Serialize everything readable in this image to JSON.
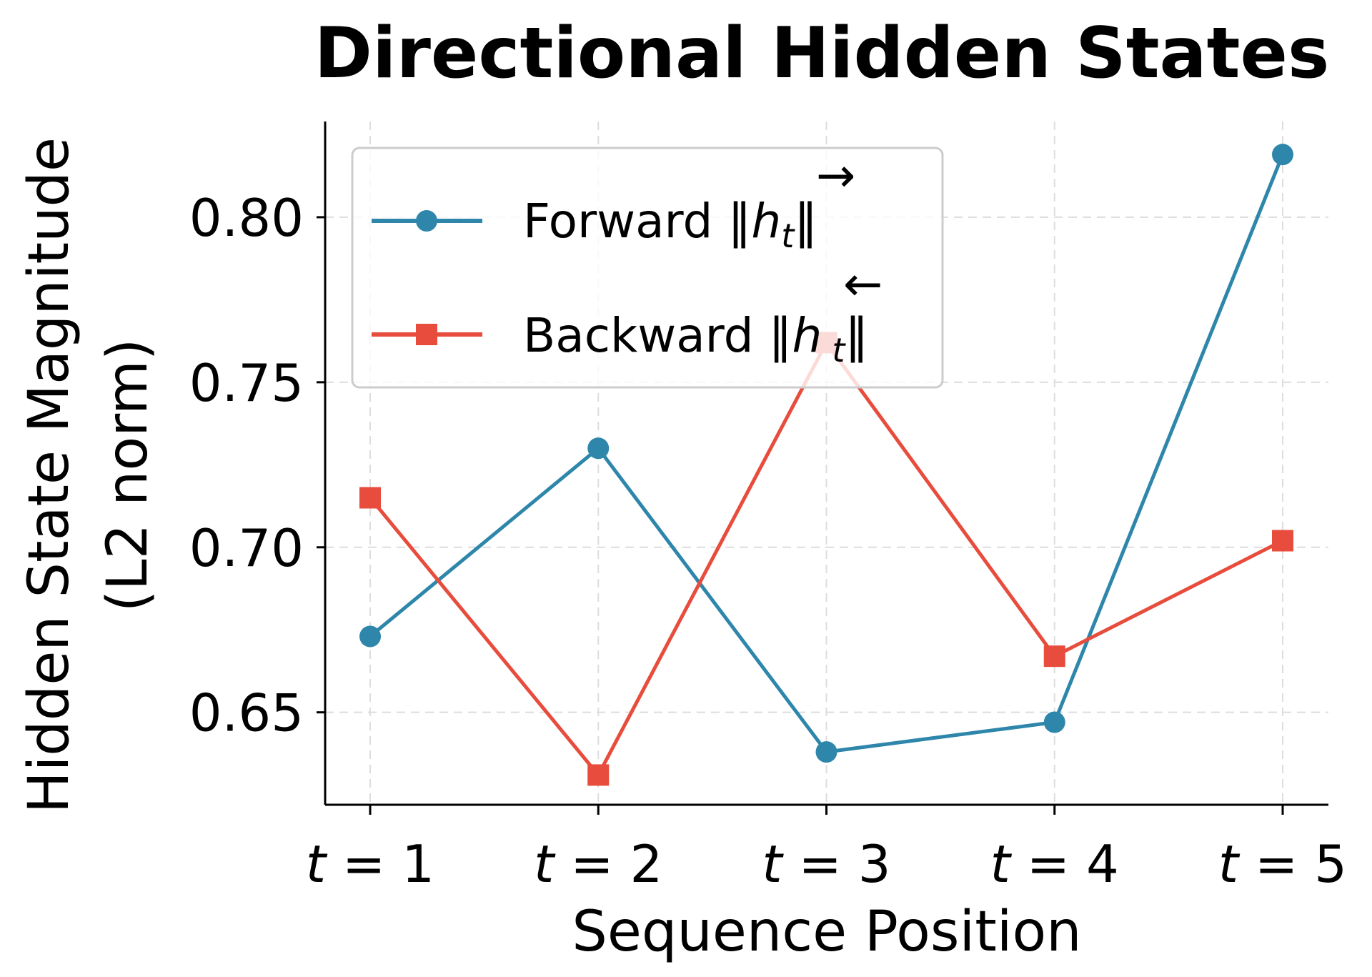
{
  "chart_data": {
    "type": "line",
    "title": "Directional Hidden States",
    "xlabel": "Sequence Position",
    "ylabel_line1": "Hidden State Magnitude",
    "ylabel_line2": "(L2 norm)",
    "categories": [
      "t = 1",
      "t = 2",
      "t = 3",
      "t = 4",
      "t = 5"
    ],
    "yticks": [
      0.65,
      0.7,
      0.75,
      0.8
    ],
    "ytick_labels": [
      "0.65",
      "0.70",
      "0.75",
      "0.80"
    ],
    "ylim": [
      0.622,
      0.829
    ],
    "grid": true,
    "legend_position": "upper left",
    "series": [
      {
        "name": "Forward ‖h→t‖",
        "label_text": "Forward ‖",
        "accent": "→",
        "marker": "circle",
        "color": "#2E86AB",
        "values": [
          0.673,
          0.73,
          0.638,
          0.647,
          0.819
        ]
      },
      {
        "name": "Backward ‖h←t‖",
        "label_text": "Backward ‖",
        "accent": "←",
        "marker": "square",
        "color": "#E74C3C",
        "values": [
          0.715,
          0.631,
          0.762,
          0.667,
          0.702
        ]
      }
    ]
  }
}
